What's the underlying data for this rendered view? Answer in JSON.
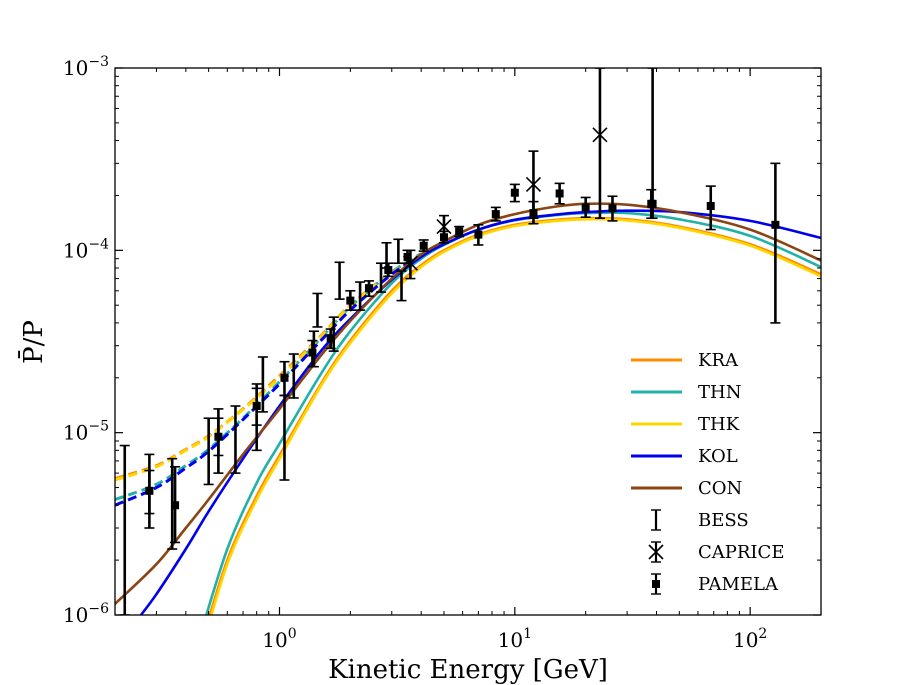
{
  "chart_data": {
    "type": "line",
    "xlabel": "Kinetic Energy [GeV]",
    "ylabel": "P̄/P",
    "x_scale": "log",
    "y_scale": "log",
    "xlim": [
      0.2,
      200
    ],
    "ylim": [
      1e-06,
      0.001
    ],
    "grid": false,
    "legend_position": "lower-right",
    "x_ticks": [
      {
        "value": 1,
        "base": "10",
        "exp": "0"
      },
      {
        "value": 10,
        "base": "10",
        "exp": "1"
      },
      {
        "value": 100,
        "base": "10",
        "exp": "2"
      }
    ],
    "y_ticks": [
      {
        "value": 1e-06,
        "base": "10",
        "exp": "−6"
      },
      {
        "value": 1e-05,
        "base": "10",
        "exp": "−5"
      },
      {
        "value": 0.0001,
        "base": "10",
        "exp": "−4"
      },
      {
        "value": 0.001,
        "base": "10",
        "exp": "−3"
      }
    ],
    "series": [
      {
        "name": "KRA",
        "color": "#ff8c00",
        "solid": [
          [
            0.45,
            6e-07
          ],
          [
            0.6,
            2e-06
          ],
          [
            0.8,
            4.5e-06
          ],
          [
            1.0,
            7.5e-06
          ],
          [
            1.5,
            1.85e-05
          ],
          [
            2.0,
            3.2e-05
          ],
          [
            3.0,
            6e-05
          ],
          [
            4.0,
            8.3e-05
          ],
          [
            5.0,
            0.0001
          ],
          [
            7.0,
            0.000122
          ],
          [
            10.0,
            0.000138
          ],
          [
            15.0,
            0.000147
          ],
          [
            20.0,
            0.00015
          ],
          [
            30.0,
            0.000148
          ],
          [
            50.0,
            0.000135
          ],
          [
            100.0,
            0.000108
          ],
          [
            200.0,
            7.4e-05
          ]
        ],
        "dashed": [
          [
            0.2,
            5.6e-06
          ],
          [
            0.3,
            6.6e-06
          ],
          [
            0.4,
            8.1e-06
          ],
          [
            0.5,
            9.6e-06
          ],
          [
            0.7,
            1.35e-05
          ],
          [
            1.0,
            2.05e-05
          ],
          [
            1.5,
            3.4e-05
          ],
          [
            2.0,
            5e-05
          ],
          [
            3.0,
            7.6e-05
          ],
          [
            4.0,
            9.5e-05
          ]
        ]
      },
      {
        "name": "THN",
        "color": "#20b2aa",
        "solid": [
          [
            0.45,
            7e-07
          ],
          [
            0.6,
            2.3e-06
          ],
          [
            0.8,
            5.3e-06
          ],
          [
            1.0,
            8.7e-06
          ],
          [
            1.5,
            2.1e-05
          ],
          [
            2.0,
            3.6e-05
          ],
          [
            3.0,
            6.6e-05
          ],
          [
            4.0,
            9e-05
          ],
          [
            5.0,
            0.000107
          ],
          [
            7.0,
            0.00013
          ],
          [
            10.0,
            0.000146
          ],
          [
            15.0,
            0.000156
          ],
          [
            20.0,
            0.00016
          ],
          [
            30.0,
            0.00016
          ],
          [
            50.0,
            0.000148
          ],
          [
            100.0,
            0.00012
          ],
          [
            200.0,
            8.1e-05
          ]
        ],
        "dashed": [
          [
            0.2,
            4.3e-06
          ],
          [
            0.3,
            5.2e-06
          ],
          [
            0.4,
            6.6e-06
          ],
          [
            0.5,
            8.1e-06
          ],
          [
            0.7,
            1.2e-05
          ],
          [
            1.0,
            1.9e-05
          ],
          [
            1.5,
            3.3e-05
          ],
          [
            2.0,
            4.9e-05
          ],
          [
            3.0,
            7.6e-05
          ],
          [
            4.0,
            9.6e-05
          ]
        ]
      },
      {
        "name": "THK",
        "color": "#ffd700",
        "solid": [
          [
            0.45,
            5.5e-07
          ],
          [
            0.6,
            1.9e-06
          ],
          [
            0.8,
            4.3e-06
          ],
          [
            1.0,
            7.2e-06
          ],
          [
            1.5,
            1.8e-05
          ],
          [
            2.0,
            3.1e-05
          ],
          [
            3.0,
            5.8e-05
          ],
          [
            4.0,
            8.1e-05
          ],
          [
            5.0,
            9.8e-05
          ],
          [
            7.0,
            0.00012
          ],
          [
            10.0,
            0.000136
          ],
          [
            15.0,
            0.000145
          ],
          [
            20.0,
            0.000148
          ],
          [
            30.0,
            0.000146
          ],
          [
            50.0,
            0.000133
          ],
          [
            100.0,
            0.000106
          ],
          [
            200.0,
            7.2e-05
          ]
        ],
        "dashed": [
          [
            0.2,
            5.5e-06
          ],
          [
            0.3,
            6.5e-06
          ],
          [
            0.4,
            8e-06
          ],
          [
            0.5,
            9.5e-06
          ],
          [
            0.7,
            1.34e-05
          ],
          [
            1.0,
            2e-05
          ],
          [
            1.5,
            3.35e-05
          ],
          [
            2.0,
            4.95e-05
          ],
          [
            3.0,
            7.5e-05
          ],
          [
            4.0,
            9.4e-05
          ]
        ]
      },
      {
        "name": "KOL",
        "color": "#0000ee",
        "solid": [
          [
            0.25,
            9.5e-07
          ],
          [
            0.3,
            1.3e-06
          ],
          [
            0.4,
            2.3e-06
          ],
          [
            0.5,
            3.7e-06
          ],
          [
            0.7,
            7.2e-06
          ],
          [
            1.0,
            1.4e-05
          ],
          [
            1.5,
            2.8e-05
          ],
          [
            2.0,
            4.2e-05
          ],
          [
            3.0,
            6.9e-05
          ],
          [
            4.0,
            9.2e-05
          ],
          [
            5.0,
            0.000108
          ],
          [
            7.0,
            0.00013
          ],
          [
            10.0,
            0.000147
          ],
          [
            15.0,
            0.000157
          ],
          [
            20.0,
            0.000162
          ],
          [
            30.0,
            0.000165
          ],
          [
            50.0,
            0.000162
          ],
          [
            100.0,
            0.000145
          ],
          [
            200.0,
            0.000117
          ]
        ],
        "dashed": [
          [
            0.2,
            4e-06
          ],
          [
            0.3,
            5e-06
          ],
          [
            0.4,
            6.4e-06
          ],
          [
            0.5,
            7.9e-06
          ],
          [
            0.7,
            1.18e-05
          ],
          [
            1.0,
            1.85e-05
          ],
          [
            1.5,
            3.2e-05
          ],
          [
            2.0,
            4.7e-05
          ],
          [
            3.0,
            7.4e-05
          ],
          [
            4.0,
            9.4e-05
          ]
        ]
      },
      {
        "name": "CON",
        "color": "#8b4513",
        "solid": [
          [
            0.2,
            1.15e-06
          ],
          [
            0.3,
            1.9e-06
          ],
          [
            0.4,
            3e-06
          ],
          [
            0.5,
            4.3e-06
          ],
          [
            0.7,
            7.6e-06
          ],
          [
            1.0,
            1.35e-05
          ],
          [
            1.5,
            2.65e-05
          ],
          [
            2.0,
            4.1e-05
          ],
          [
            3.0,
            7e-05
          ],
          [
            4.0,
            9.5e-05
          ],
          [
            5.0,
            0.000112
          ],
          [
            7.0,
            0.000138
          ],
          [
            10.0,
            0.000158
          ],
          [
            15.0,
            0.000174
          ],
          [
            20.0,
            0.00018
          ],
          [
            30.0,
            0.000178
          ],
          [
            50.0,
            0.000162
          ],
          [
            100.0,
            0.00013
          ],
          [
            200.0,
            8.8e-05
          ]
        ],
        "dashed": []
      }
    ],
    "data_sets": [
      {
        "name": "BESS",
        "marker": "none",
        "points": [
          {
            "x": 0.22,
            "y": 3.5e-06,
            "lo": 1e-06,
            "hi": 8.5e-06
          },
          {
            "x": 0.28,
            "y": 4.9e-06,
            "lo": 3e-06,
            "hi": 7.6e-06
          },
          {
            "x": 0.35,
            "y": 4.8e-06,
            "lo": 2.3e-06,
            "hi": 7.2e-06
          },
          {
            "x": 0.5,
            "y": 8.8e-06,
            "lo": 5.2e-06,
            "hi": 1.2e-05
          },
          {
            "x": 0.55,
            "y": 1e-05,
            "lo": 6e-06,
            "hi": 1.35e-05
          },
          {
            "x": 0.65,
            "y": 1e-05,
            "lo": 6e-06,
            "hi": 1.4e-05
          },
          {
            "x": 0.8,
            "y": 1.3e-05,
            "lo": 8e-06,
            "hi": 1.85e-05
          },
          {
            "x": 0.85,
            "y": 1.9e-05,
            "lo": 1.3e-05,
            "hi": 2.6e-05
          },
          {
            "x": 1.05,
            "y": 1.05e-05,
            "lo": 5.5e-06,
            "hi": 1.6e-05
          },
          {
            "x": 1.15,
            "y": 2.1e-05,
            "lo": 1.55e-05,
            "hi": 2.7e-05
          },
          {
            "x": 1.4,
            "y": 2.9e-05,
            "lo": 2.3e-05,
            "hi": 3.6e-05
          },
          {
            "x": 1.45,
            "y": 4.8e-05,
            "lo": 3.8e-05,
            "hi": 5.8e-05
          },
          {
            "x": 1.7,
            "y": 3.5e-05,
            "lo": 2.8e-05,
            "hi": 4.3e-05
          },
          {
            "x": 1.8,
            "y": 7e-05,
            "lo": 5.4e-05,
            "hi": 8.6e-05
          },
          {
            "x": 2.2,
            "y": 5.7e-05,
            "lo": 4.7e-05,
            "hi": 6.7e-05
          },
          {
            "x": 2.7,
            "y": 7.2e-05,
            "lo": 5.9e-05,
            "hi": 8.5e-05
          },
          {
            "x": 2.85,
            "y": 9.5e-05,
            "lo": 8e-05,
            "hi": 0.00011
          },
          {
            "x": 3.2,
            "y": 0.0001,
            "lo": 8.5e-05,
            "hi": 0.000115
          },
          {
            "x": 3.3,
            "y": 6.5e-05,
            "lo": 5.3e-05,
            "hi": 7.7e-05
          }
        ]
      },
      {
        "name": "CAPRICE",
        "marker": "x",
        "points": [
          {
            "x": 3.6,
            "y": 8.5e-05,
            "lo": 7e-05,
            "hi": 0.0001
          },
          {
            "x": 5.0,
            "y": 0.000135,
            "lo": 0.00011,
            "hi": 0.000155
          },
          {
            "x": 12.0,
            "y": 0.00023,
            "lo": 0.00015,
            "hi": 0.00035
          },
          {
            "x": 23.0,
            "y": 0.00043,
            "lo": 0.00015,
            "hi": 0.001
          }
        ]
      },
      {
        "name": "PAMELA",
        "marker": "square",
        "points": [
          {
            "x": 0.28,
            "y": 4.8e-06,
            "lo": 3.6e-06,
            "hi": 6.2e-06
          },
          {
            "x": 0.36,
            "y": 4e-06,
            "lo": 2.5e-06,
            "hi": 6.5e-06
          },
          {
            "x": 0.55,
            "y": 9.5e-06,
            "lo": 7.5e-06,
            "hi": 1.2e-05
          },
          {
            "x": 0.8,
            "y": 1.4e-05,
            "lo": 1.1e-05,
            "hi": 1.75e-05
          },
          {
            "x": 1.05,
            "y": 2e-05,
            "lo": 1.6e-05,
            "hi": 2.45e-05
          },
          {
            "x": 1.38,
            "y": 2.75e-05,
            "lo": 2.3e-05,
            "hi": 3.2e-05
          },
          {
            "x": 1.65,
            "y": 3.3e-05,
            "lo": 2.9e-05,
            "hi": 3.7e-05
          },
          {
            "x": 2.0,
            "y": 5.3e-05,
            "lo": 4.7e-05,
            "hi": 6e-05
          },
          {
            "x": 2.4,
            "y": 6.2e-05,
            "lo": 5.6e-05,
            "hi": 6.8e-05
          },
          {
            "x": 2.9,
            "y": 7.8e-05,
            "lo": 7.2e-05,
            "hi": 8.5e-05
          },
          {
            "x": 3.5,
            "y": 9.2e-05,
            "lo": 8.5e-05,
            "hi": 0.0001
          },
          {
            "x": 4.1,
            "y": 0.000106,
            "lo": 9.9e-05,
            "hi": 0.000114
          },
          {
            "x": 5.0,
            "y": 0.000118,
            "lo": 0.00011,
            "hi": 0.000127
          },
          {
            "x": 5.8,
            "y": 0.000127,
            "lo": 0.000119,
            "hi": 0.000135
          },
          {
            "x": 7.0,
            "y": 0.000122,
            "lo": 0.000107,
            "hi": 0.000138
          },
          {
            "x": 8.3,
            "y": 0.000158,
            "lo": 0.000145,
            "hi": 0.000172
          },
          {
            "x": 10.0,
            "y": 0.000207,
            "lo": 0.000185,
            "hi": 0.00023
          },
          {
            "x": 12.0,
            "y": 0.00016,
            "lo": 0.00014,
            "hi": 0.000185
          },
          {
            "x": 15.5,
            "y": 0.000205,
            "lo": 0.00018,
            "hi": 0.000233
          },
          {
            "x": 20.0,
            "y": 0.000172,
            "lo": 0.000152,
            "hi": 0.000195
          },
          {
            "x": 26.0,
            "y": 0.00017,
            "lo": 0.000145,
            "hi": 0.000198
          },
          {
            "x": 38.0,
            "y": 0.00018,
            "lo": 0.00015,
            "hi": 0.000215
          },
          {
            "x": 38.5,
            "y": 0.00018,
            "lo": 0.00015,
            "hi": 0.001
          },
          {
            "x": 68.0,
            "y": 0.000175,
            "lo": 0.00013,
            "hi": 0.000225
          },
          {
            "x": 128.0,
            "y": 0.000138,
            "lo": 4e-05,
            "hi": 0.0003
          }
        ]
      }
    ]
  }
}
